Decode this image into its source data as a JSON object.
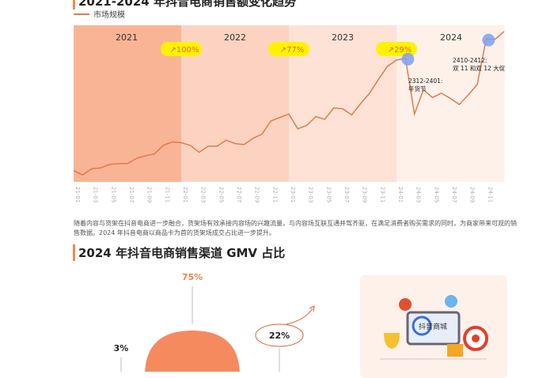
{
  "title": "2021-2024 年抖音电商销售额变化趋势",
  "chart_data": [
    {
      "type": "line",
      "title": "2021-2024 年抖音电商销售额变化趋势",
      "legend": [
        "市场规模"
      ],
      "series": [
        {
          "name": "市场规模",
          "values": [
            13,
            8,
            15,
            16,
            20,
            21,
            21,
            27,
            30,
            32,
            42,
            46,
            45,
            42,
            34,
            41,
            41,
            48,
            44,
            43,
            50,
            55,
            70,
            74,
            78,
            61,
            65,
            75,
            72,
            85,
            84,
            77,
            90,
            102,
            118,
            133,
            140,
            142,
            78,
            106,
            97,
            102,
            96,
            89,
            100,
            112,
            164,
            164,
            173
          ]
        }
      ],
      "x_start": "21-01",
      "x_end": "25-01",
      "tick_labels": [
        "21-01",
        "21-03",
        "21-05",
        "21-07",
        "21-09",
        "21-11",
        "22-01",
        "22-03",
        "22-05",
        "22-07",
        "22-09",
        "22-11",
        "23-01",
        "23-03",
        "23-05",
        "23-07",
        "23-09",
        "23-11",
        "24-01",
        "24-03",
        "24-05",
        "24-07",
        "24-09",
        "24-11"
      ],
      "years": [
        "2021",
        "2022",
        "2023",
        "2024"
      ],
      "growth_badges": [
        "100%",
        "77%",
        "29%"
      ],
      "annotations": [
        {
          "label": "2312-2401:",
          "sub": "年货节"
        },
        {
          "label": "2410-2412:",
          "sub": "双 11 和双 12 大促"
        }
      ],
      "ylim": [
        0,
        180
      ],
      "grid": false,
      "legend_position": "top-left",
      "colors": {
        "line": "#e07b4e",
        "band2021": "#f9b496",
        "band2022": "#fcd3c0",
        "band2023": "#fde2d5",
        "band2024": "#fef1ea",
        "badge": "#fff200",
        "marker": "#7fa0ef"
      }
    },
    {
      "type": "pie",
      "title": "2024 年抖音电商销售渠道 GMV 占比",
      "values": [
        75,
        3,
        22
      ],
      "labels": [
        "75%",
        "3%",
        "22%"
      ]
    }
  ],
  "paragraph": "随着内容与货架在抖音电商进一步融合，货架场有效承接内容场的兴趣流量，与内容场互联互通并驾齐驱，在满足消费者购买需求的同时，为商家带来可观的销售数据。2024 年抖音电商以商品卡为首的货架场成交占比进一步提升。",
  "heading2": "2024 年抖音电商销售渠道 GMV 占比",
  "illustration_text": "抖音商城"
}
